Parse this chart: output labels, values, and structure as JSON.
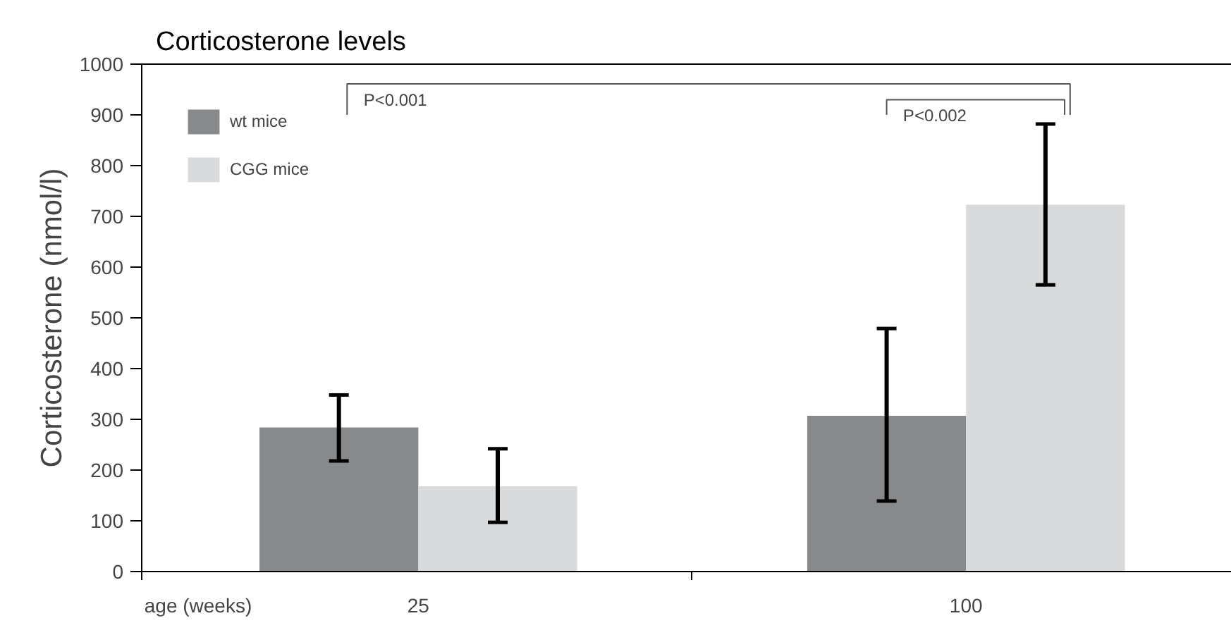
{
  "chart_data": {
    "type": "bar",
    "title": "Corticosterone levels",
    "ylabel": "Corticosterone (nmol/l)",
    "xlabel": "age (weeks)",
    "categories": [
      "25",
      "100"
    ],
    "series": [
      {
        "name": "wt mice",
        "color": "#88898b",
        "values": [
          284,
          307
        ],
        "errors": [
          [
            218,
            348
          ],
          [
            139,
            479
          ]
        ]
      },
      {
        "name": "CGG mice",
        "color": "#d9dadb",
        "values": [
          168,
          723
        ],
        "errors": [
          [
            97,
            242
          ],
          [
            565,
            882
          ]
        ]
      }
    ],
    "ylim": [
      0,
      1000
    ],
    "yticks": [
      0,
      100,
      200,
      300,
      400,
      500,
      600,
      700,
      800,
      900,
      1000
    ],
    "legend": "top left",
    "grid": false,
    "annotations": [
      "P<0.001",
      "P<0.002"
    ]
  }
}
